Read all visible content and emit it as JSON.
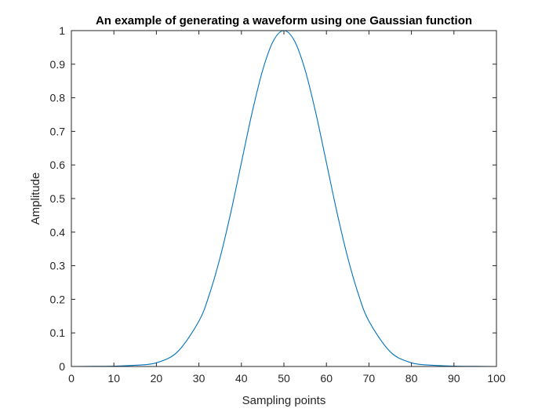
{
  "chart_data": {
    "type": "line",
    "title": "An example of generating a waveform using one Gaussian function",
    "xlabel": "Sampling points",
    "ylabel": "Amplitude",
    "xlim": [
      0,
      100
    ],
    "ylim": [
      0,
      1
    ],
    "xticks": [
      0,
      10,
      20,
      30,
      40,
      50,
      60,
      70,
      80,
      90,
      100
    ],
    "yticks": [
      0,
      0.1,
      0.2,
      0.3,
      0.4,
      0.5,
      0.6,
      0.7,
      0.8,
      0.9,
      1
    ],
    "xtick_labels": [
      "0",
      "10",
      "20",
      "30",
      "40",
      "50",
      "60",
      "70",
      "80",
      "90",
      "100"
    ],
    "ytick_labels": [
      "0",
      "0.1",
      "0.2",
      "0.3",
      "0.4",
      "0.5",
      "0.6",
      "0.7",
      "0.8",
      "0.9",
      "1"
    ],
    "grid": false,
    "legend": "none",
    "line_color": "#0072BD",
    "axis_color": "#262626",
    "series": [
      {
        "x": [
          0,
          5,
          10,
          15,
          20,
          25,
          30,
          32.5,
          35,
          37.5,
          40,
          42.5,
          45,
          47.5,
          50,
          52.5,
          55,
          57.5,
          60,
          62.5,
          65,
          67.5,
          70,
          75,
          80,
          85,
          90,
          95,
          100
        ],
        "values": [
          0,
          0.0004,
          0.0012,
          0.0036,
          0.011,
          0.044,
          0.135,
          0.216,
          0.325,
          0.458,
          0.607,
          0.755,
          0.882,
          0.969,
          1.0,
          0.969,
          0.882,
          0.755,
          0.607,
          0.458,
          0.325,
          0.216,
          0.135,
          0.044,
          0.011,
          0.0036,
          0.0012,
          0.0004,
          0
        ]
      }
    ]
  }
}
